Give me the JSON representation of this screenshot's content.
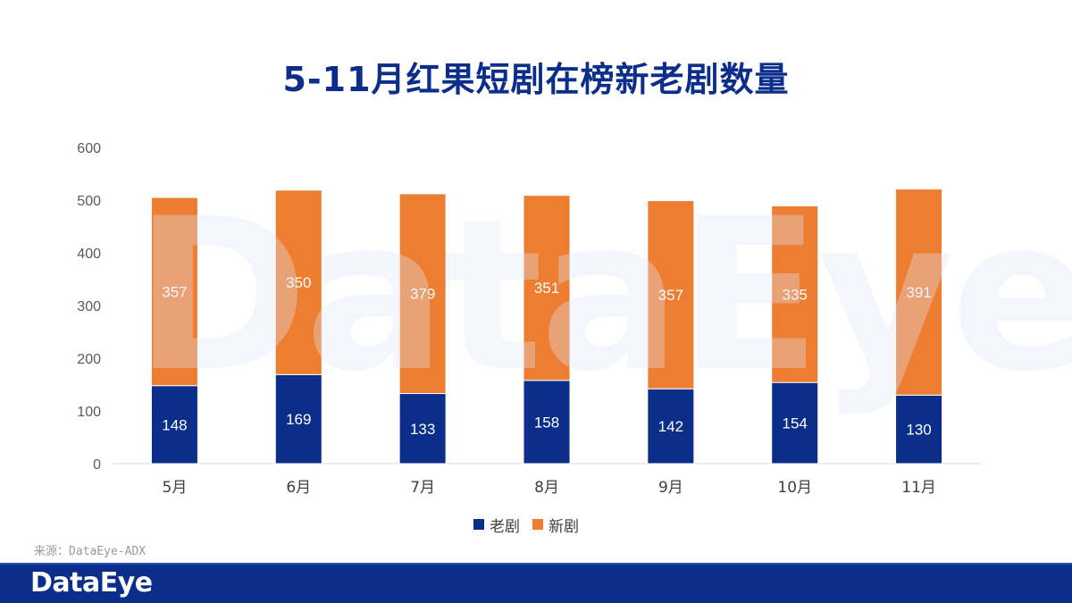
{
  "brand": {
    "watermark_text": "DataEye",
    "footer_logo": "DataEye",
    "footer_color": "#0b2e8a"
  },
  "source": "来源：DataEye-ADX",
  "chart_data": {
    "type": "bar",
    "stacked": true,
    "title": "5-11月红果短剧在榜新老剧数量",
    "categories": [
      "5月",
      "6月",
      "7月",
      "8月",
      "9月",
      "10月",
      "11月"
    ],
    "series": [
      {
        "name": "老剧",
        "color": "#0b2e8a",
        "values": [
          148,
          169,
          133,
          158,
          142,
          154,
          130
        ]
      },
      {
        "name": "新剧",
        "color": "#ed7d31",
        "values": [
          357,
          350,
          379,
          351,
          357,
          335,
          391
        ]
      }
    ],
    "ylim": [
      0,
      600
    ],
    "yticks": [
      0,
      100,
      200,
      300,
      400,
      500,
      600
    ],
    "grid": false,
    "legend": "bottom-center",
    "data_labels": true
  }
}
